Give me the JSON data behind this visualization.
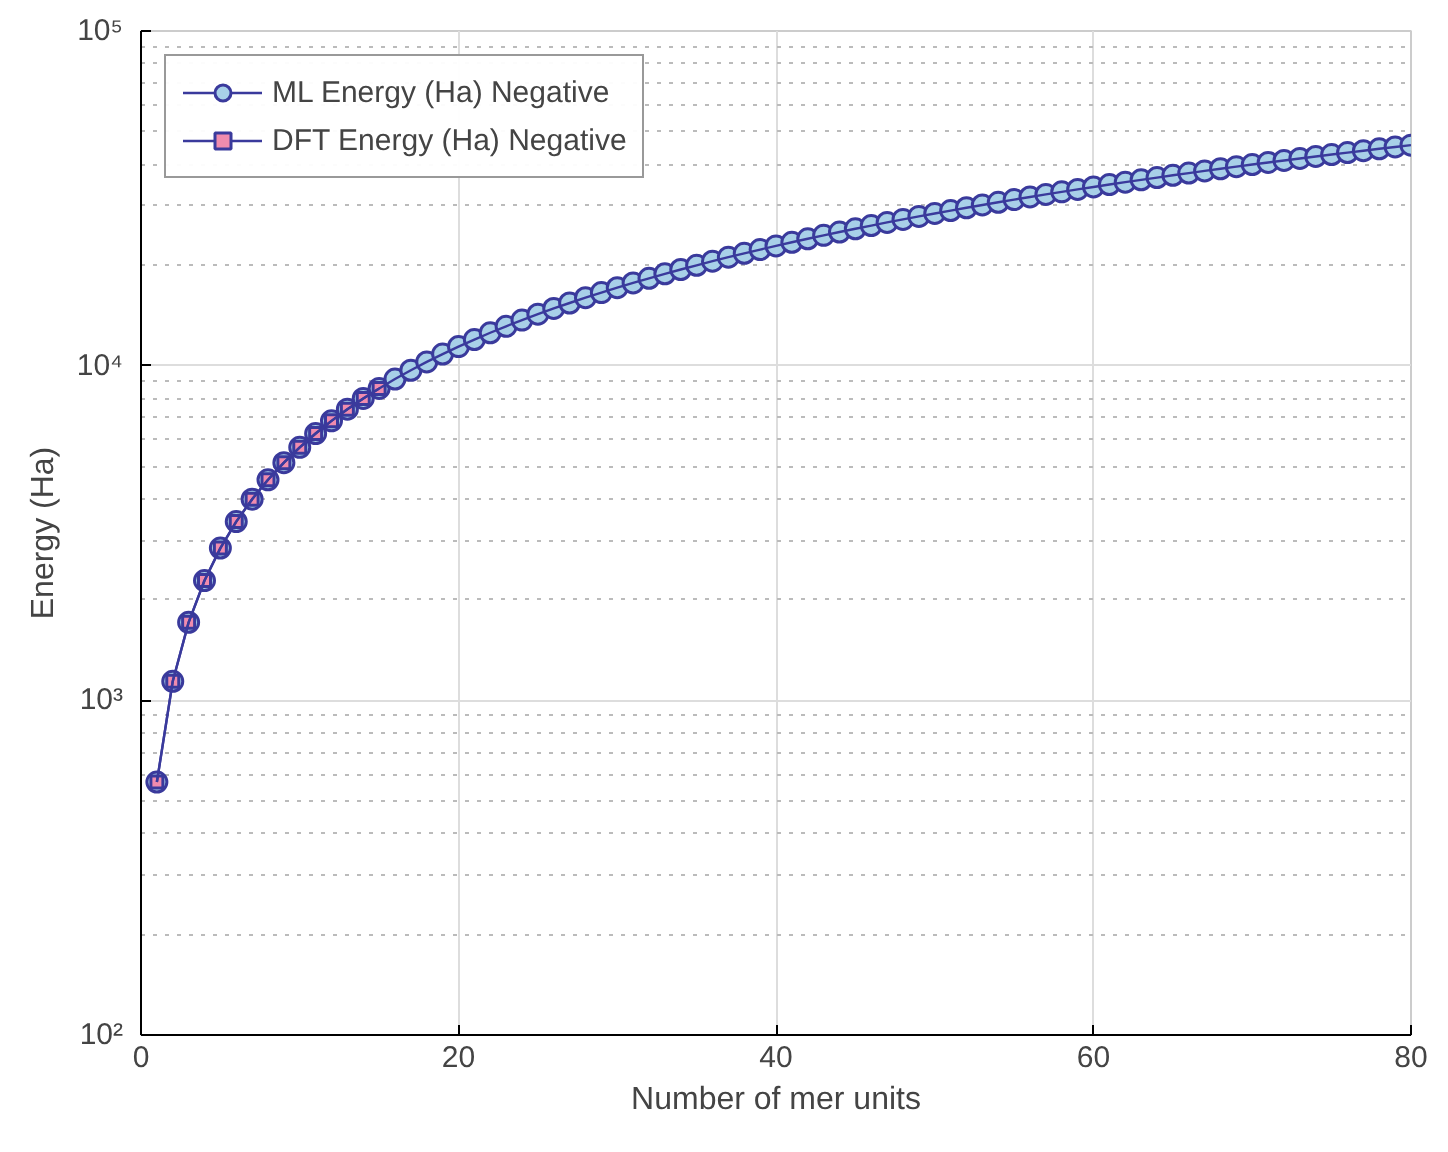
{
  "chart_data": {
    "type": "line",
    "xlabel": "Number of mer units",
    "ylabel": "Energy (Ha)",
    "log": "y",
    "grid": true,
    "legend": "top left",
    "line_style": "solid",
    "xlim": [
      0,
      80
    ],
    "xticks": [
      0,
      20,
      40,
      60,
      80
    ],
    "ylim": [
      100,
      100000
    ],
    "yticks": [
      {
        "value": 100,
        "label": "10²"
      },
      {
        "value": 1000,
        "label": "10³"
      },
      {
        "value": 10000,
        "label": "10⁴"
      },
      {
        "value": 100000,
        "label": "10⁵"
      }
    ],
    "series": [
      {
        "name": "ML Energy (Ha) Negative",
        "color": "#3a3a9c",
        "marker": "circle",
        "colors": [
          "#a8d0e8",
          "#a8d0e8",
          "#a8d0e8",
          "#a8d0e8",
          "#a8d0e8",
          "#a8d0e8",
          "#a8d0e8",
          "#a8d0e8",
          "#a8d0e8",
          "#a8d0e8",
          "#a8d0e8",
          "#a8d0e8",
          "#a8d0e8",
          "#a8d0e8",
          "#a8d0e8",
          "#a8d0e8",
          "#a8d0e8",
          "#a8d0e8",
          "#a8d0e8",
          "#a8d0e8",
          "#a8d0e8",
          "#a8d0e8",
          "#a8d0e8",
          "#a8d0e8",
          "#a8d0e8",
          "#a8d0e8",
          "#a8d0e8",
          "#a8d0e8",
          "#a8d0e8",
          "#a8d0e8",
          "#a8d0e8",
          "#a8d0e8",
          "#a8d0e8",
          "#a8d0e8",
          "#a8d0e8",
          "#a8d0e8",
          "#a8d0e8",
          "#a8d0e8",
          "#a8d0e8",
          "#a8d0e8",
          "#a8d0e8",
          "#a8d0e8",
          "#a8d0e8",
          "#a8d0e8",
          "#a8d0e8",
          "#a8d0e8",
          "#a8d0e8",
          "#a8d0e8",
          "#a8d0e8",
          "#a8d0e8",
          "#a8d0e8",
          "#a8d0e8",
          "#a8d0e8",
          "#a8d0e8",
          "#a8d0e8",
          "#a8d0e8",
          "#a8d0e8",
          "#a8d0e8",
          "#a8d0e8",
          "#a8d0e8",
          "#a8d0e8",
          "#a8d0e8",
          "#a8d0e8",
          "#a8d0e8",
          "#a8d0e8",
          "#a8d0e8",
          "#a8d0e8",
          "#a8d0e8",
          "#a8d0e8",
          "#a8d0e8",
          "#a8d0e8",
          "#a8d0e8",
          "#a8d0e8",
          "#a8d0e8",
          "#a8d0e8",
          "#a8d0e8",
          "#a8d0e8",
          "#a8d0e8",
          "#a8d0e8",
          "#a8d0e8"
        ],
        "x": [
          1,
          2,
          3,
          4,
          5,
          6,
          7,
          8,
          9,
          10,
          11,
          12,
          13,
          14,
          15,
          16,
          17,
          18,
          19,
          20,
          21,
          22,
          23,
          24,
          25,
          26,
          27,
          28,
          29,
          30,
          31,
          32,
          33,
          34,
          35,
          36,
          37,
          38,
          39,
          40,
          41,
          42,
          43,
          44,
          45,
          46,
          47,
          48,
          49,
          50,
          51,
          52,
          53,
          54,
          55,
          56,
          57,
          58,
          59,
          60,
          61,
          62,
          63,
          64,
          65,
          66,
          67,
          68,
          69,
          70,
          71,
          72,
          73,
          74,
          75,
          76,
          77,
          78,
          79,
          80
        ],
        "values": [
          570,
          1140,
          1710,
          2280,
          2850,
          3420,
          3990,
          4560,
          5130,
          5700,
          6270,
          6840,
          7410,
          7980,
          8550,
          9120,
          9690,
          10260,
          10830,
          11400,
          11970,
          12540,
          13110,
          13680,
          14250,
          14820,
          15390,
          15960,
          16530,
          17100,
          17670,
          18240,
          18810,
          19380,
          19950,
          20520,
          21090,
          21660,
          22230,
          22800,
          23370,
          23940,
          24510,
          25080,
          25650,
          26220,
          26790,
          27360,
          27930,
          28500,
          29070,
          29640,
          30210,
          30780,
          31350,
          31920,
          32490,
          33060,
          33630,
          34200,
          34770,
          35340,
          35910,
          36480,
          37050,
          37620,
          38190,
          38760,
          39330,
          39900,
          40470,
          41040,
          41610,
          42180,
          42750,
          43320,
          43890,
          44460,
          45030,
          45600
        ]
      },
      {
        "name": "DFT Energy (Ha) Negative",
        "color": "#3a3a9c",
        "marker": "square",
        "colors": [
          "#f08cae",
          "#f08cae",
          "#f08cae",
          "#f08cae",
          "#f08cae",
          "#f08cae",
          "#f08cae",
          "#f08cae",
          "#f08cae",
          "#f08cae",
          "#f08cae",
          "#f08cae",
          "#f08cae",
          "#f08cae",
          "#f08cae"
        ],
        "x": [
          1,
          2,
          3,
          4,
          5,
          6,
          7,
          8,
          9,
          10,
          11,
          12,
          13,
          14,
          15
        ],
        "values": [
          570,
          1140,
          1710,
          2280,
          2850,
          3420,
          3990,
          4560,
          5130,
          5700,
          6270,
          6840,
          7410,
          7980,
          8550
        ]
      }
    ]
  }
}
